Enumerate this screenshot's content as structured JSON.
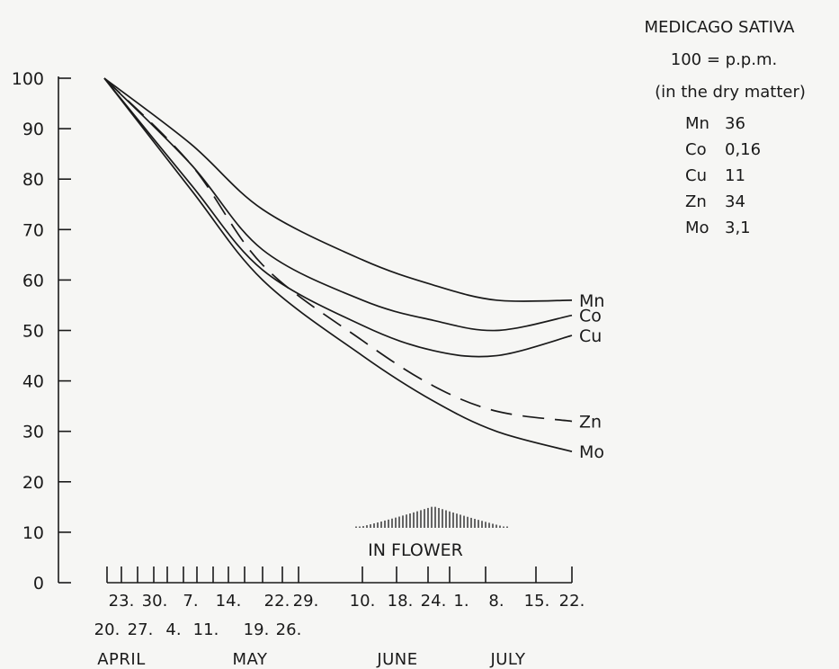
{
  "chart_data": {
    "type": "line",
    "title": "MEDICAGO SATIVA",
    "subtitle": "100 = p.p.m.",
    "subtitle2": "(in the dry matter)",
    "ylim": [
      0,
      100
    ],
    "yticks": [
      "0",
      "10",
      "20",
      "30",
      "40",
      "50",
      "60",
      "70",
      "80",
      "90",
      "100"
    ],
    "reference_values": [
      {
        "element": "Mn",
        "value": "36"
      },
      {
        "element": "Co",
        "value": "0,16"
      },
      {
        "element": "Cu",
        "value": "11"
      },
      {
        "element": "Zn",
        "value": "34"
      },
      {
        "element": "Mo",
        "value": "3,1"
      }
    ],
    "date_ticks_top": [
      "23.",
      "30.",
      "7.",
      "14.",
      "22.",
      "29.",
      "10.",
      "18.",
      "24.",
      "1.",
      "8.",
      "15.",
      "22."
    ],
    "date_ticks_bottom": [
      "20.",
      "27.",
      "4.",
      "11.",
      "19.",
      "26."
    ],
    "months": [
      "APRIL",
      "MAY",
      "JUNE",
      "JULY"
    ],
    "annotation": "IN FLOWER",
    "x": [
      "Apr 20",
      "May 4",
      "May 19",
      "Jun 10",
      "Jun 24",
      "Jul 8",
      "Jul 22"
    ],
    "series": [
      {
        "name": "Mn",
        "style": "solid",
        "values": [
          100,
          87,
          74,
          64,
          59,
          56,
          56
        ]
      },
      {
        "name": "Co",
        "style": "solid",
        "values": [
          100,
          83,
          66,
          56,
          52,
          50,
          53
        ]
      },
      {
        "name": "Cu",
        "style": "solid",
        "values": [
          100,
          79,
          62,
          51,
          46,
          45,
          49
        ]
      },
      {
        "name": "Zn",
        "style": "dashed",
        "values": [
          100,
          83,
          63,
          48,
          39,
          34,
          32
        ]
      },
      {
        "name": "Mo",
        "style": "solid",
        "values": [
          100,
          78,
          60,
          45,
          36,
          30,
          26
        ]
      }
    ]
  }
}
